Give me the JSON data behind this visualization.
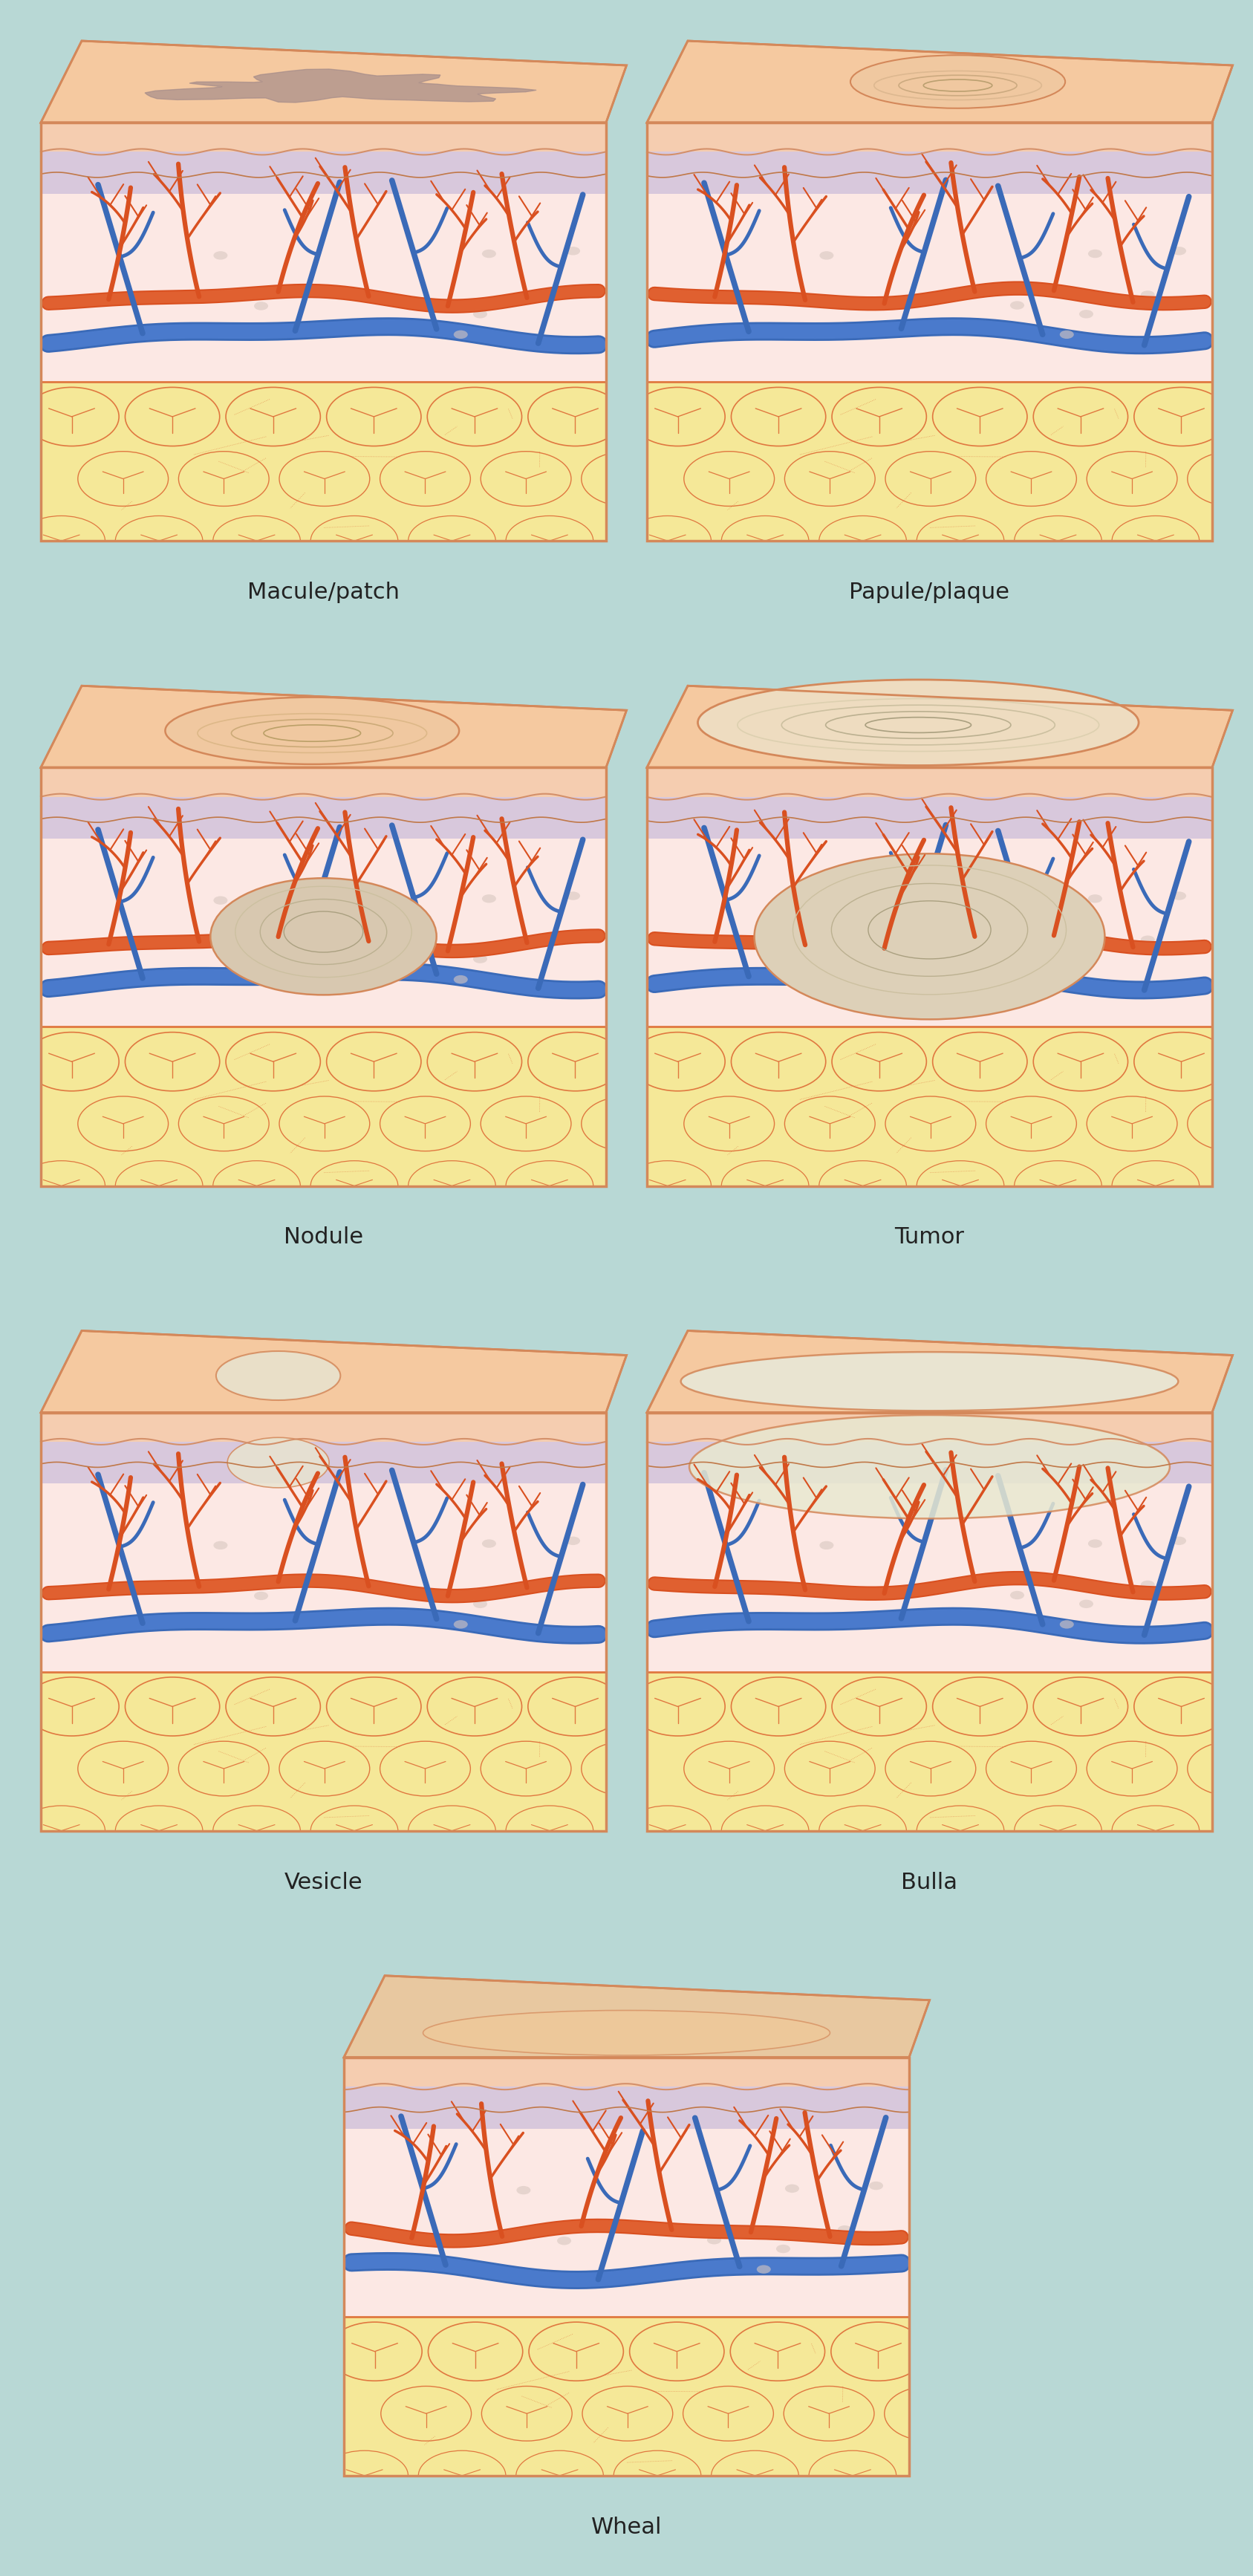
{
  "background_color": "#b8d8d5",
  "skin_surface_color": "#f5c9a0",
  "skin_surface_shadow": "#e8b888",
  "epidermis_color": "#f5cdb0",
  "sub_epidermis_color": "#ddd0e0",
  "dermis_color": "#fce8e4",
  "fat_color": "#f5e898",
  "fat_border_color": "#e07840",
  "panel_border_color": "#d4885a",
  "artery_color": "#d95020",
  "artery_dark": "#b83010",
  "vein_color": "#3a6ab8",
  "label_color": "#222222",
  "label_fontsize": 22,
  "macule_color": "#a08888",
  "nodule_color": "#d8c8b0",
  "tumor_color": "#ddd0b8",
  "vesicle_color": "#e8e4d0",
  "bulla_color": "#e8e8d0",
  "wheal_color": "#f0d8c0",
  "panels": [
    {
      "name": "Macule/patch",
      "row": 0,
      "col": 0,
      "lesion": "macule"
    },
    {
      "name": "Papule/plaque",
      "row": 0,
      "col": 1,
      "lesion": "papule"
    },
    {
      "name": "Nodule",
      "row": 1,
      "col": 0,
      "lesion": "nodule"
    },
    {
      "name": "Tumor",
      "row": 1,
      "col": 1,
      "lesion": "tumor"
    },
    {
      "name": "Vesicle",
      "row": 2,
      "col": 0,
      "lesion": "vesicle"
    },
    {
      "name": "Bulla",
      "row": 2,
      "col": 1,
      "lesion": "bulla"
    },
    {
      "name": "Wheal",
      "row": 3,
      "col": null,
      "lesion": "wheal"
    }
  ]
}
